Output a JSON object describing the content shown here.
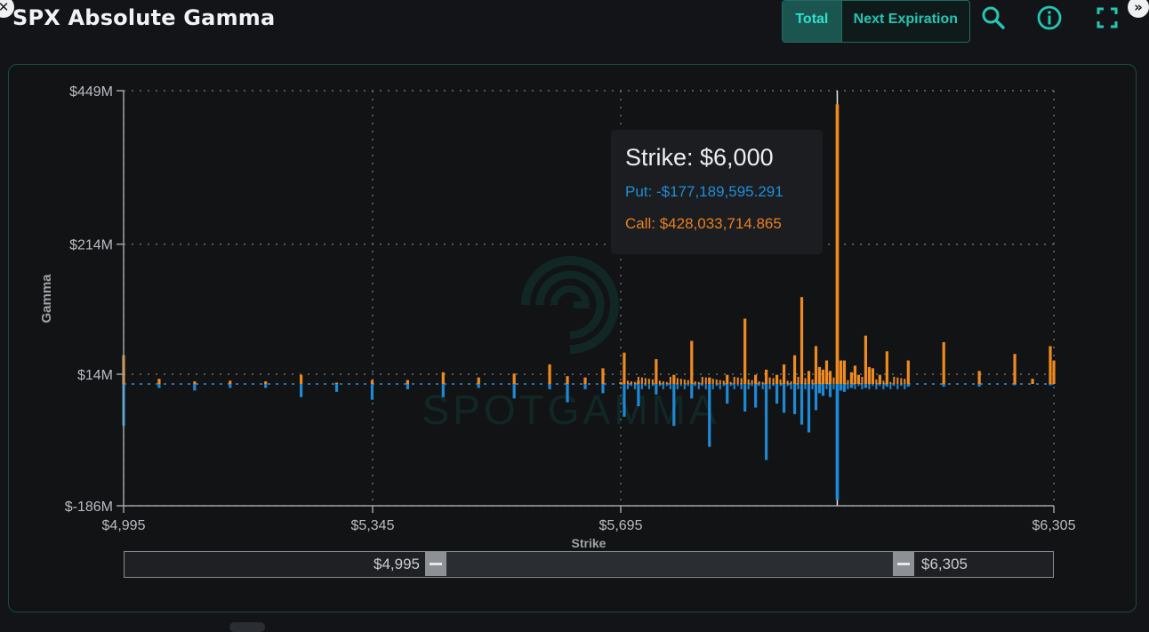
{
  "header": {
    "title": "SPX Absolute Gamma",
    "toggle": {
      "total_label": "Total",
      "next_label": "Next Expiration",
      "selected": "Total"
    },
    "icons": [
      "zoom-icon",
      "info-icon",
      "fullscreen-icon"
    ]
  },
  "colors": {
    "call": "#ef8a1f",
    "put": "#1e8ad6",
    "accent": "#21c7b4",
    "grid": "#6b7076"
  },
  "tooltip": {
    "title": "Strike: $6,000",
    "put": "Put: -$177,189,595.291",
    "call": "Call: $428,033,714.865"
  },
  "range_slider": {
    "low_label": "$4,995",
    "high_label": "$6,305",
    "low": 4995,
    "high": 6305,
    "selected_low": 5460,
    "selected_high": 6120
  },
  "chart_data": {
    "type": "bar",
    "title": "SPX Absolute Gamma",
    "xlabel": "Strike",
    "ylabel": "Gamma",
    "y_ticks": [
      "$449M",
      "$214M",
      "$14M",
      "$-186M"
    ],
    "y_tick_values": [
      449,
      214,
      14,
      -186
    ],
    "x_ticks": [
      "$4,995",
      "$5,345",
      "$5,695",
      "$6,305"
    ],
    "x_tick_values": [
      4995,
      5345,
      5695,
      6305
    ],
    "xlim": [
      4995,
      6305
    ],
    "ylim": [
      -186,
      449
    ],
    "grid": true,
    "highlight_strike": 6000,
    "series": [
      {
        "name": "Call",
        "points": [
          [
            4995,
            44
          ],
          [
            5045,
            8
          ],
          [
            5095,
            4
          ],
          [
            5145,
            5
          ],
          [
            5195,
            4
          ],
          [
            5245,
            14
          ],
          [
            5295,
            2
          ],
          [
            5345,
            6
          ],
          [
            5395,
            6
          ],
          [
            5445,
            18
          ],
          [
            5495,
            10
          ],
          [
            5545,
            16
          ],
          [
            5595,
            30
          ],
          [
            5620,
            12
          ],
          [
            5645,
            10
          ],
          [
            5670,
            24
          ],
          [
            5695,
            3
          ],
          [
            5700,
            48
          ],
          [
            5720,
            5
          ],
          [
            5745,
            38
          ],
          [
            5770,
            14
          ],
          [
            5795,
            66
          ],
          [
            5820,
            10
          ],
          [
            5845,
            14
          ],
          [
            5870,
            100
          ],
          [
            5885,
            14
          ],
          [
            5900,
            22
          ],
          [
            5915,
            14
          ],
          [
            5925,
            30
          ],
          [
            5940,
            44
          ],
          [
            5950,
            133
          ],
          [
            5960,
            20
          ],
          [
            5970,
            58
          ],
          [
            5975,
            26
          ],
          [
            5980,
            22
          ],
          [
            5985,
            36
          ],
          [
            5990,
            20
          ],
          [
            6000,
            428
          ],
          [
            6005,
            36
          ],
          [
            6010,
            36
          ],
          [
            6020,
            18
          ],
          [
            6025,
            28
          ],
          [
            6030,
            14
          ],
          [
            6040,
            74
          ],
          [
            6045,
            26
          ],
          [
            6050,
            24
          ],
          [
            6060,
            14
          ],
          [
            6070,
            50
          ],
          [
            6100,
            36
          ],
          [
            6150,
            64
          ],
          [
            6200,
            20
          ],
          [
            6250,
            46
          ],
          [
            6275,
            8
          ],
          [
            6300,
            58
          ],
          [
            6305,
            36
          ]
        ]
      },
      {
        "name": "Put",
        "points": [
          [
            4995,
            -64
          ],
          [
            5045,
            -6
          ],
          [
            5095,
            -10
          ],
          [
            5145,
            -6
          ],
          [
            5195,
            -6
          ],
          [
            5245,
            -20
          ],
          [
            5295,
            -12
          ],
          [
            5345,
            -24
          ],
          [
            5395,
            -8
          ],
          [
            5445,
            -20
          ],
          [
            5495,
            -6
          ],
          [
            5545,
            -22
          ],
          [
            5595,
            -8
          ],
          [
            5620,
            -28
          ],
          [
            5645,
            -8
          ],
          [
            5670,
            -14
          ],
          [
            5700,
            -50
          ],
          [
            5720,
            -34
          ],
          [
            5745,
            -16
          ],
          [
            5770,
            -64
          ],
          [
            5795,
            -22
          ],
          [
            5820,
            -96
          ],
          [
            5845,
            -30
          ],
          [
            5870,
            -42
          ],
          [
            5885,
            -36
          ],
          [
            5900,
            -116
          ],
          [
            5915,
            -30
          ],
          [
            5925,
            -44
          ],
          [
            5940,
            -46
          ],
          [
            5950,
            -62
          ],
          [
            5960,
            -74
          ],
          [
            5970,
            -40
          ],
          [
            5975,
            -14
          ],
          [
            5980,
            -18
          ],
          [
            5990,
            -20
          ],
          [
            6000,
            -177
          ],
          [
            6005,
            -10
          ],
          [
            6010,
            -12
          ],
          [
            6020,
            -6
          ],
          [
            6040,
            -6
          ],
          [
            6070,
            -4
          ],
          [
            6100,
            -4
          ],
          [
            6150,
            -4
          ],
          [
            6200,
            -4
          ],
          [
            6250,
            -2
          ],
          [
            6300,
            -2
          ]
        ]
      }
    ]
  }
}
